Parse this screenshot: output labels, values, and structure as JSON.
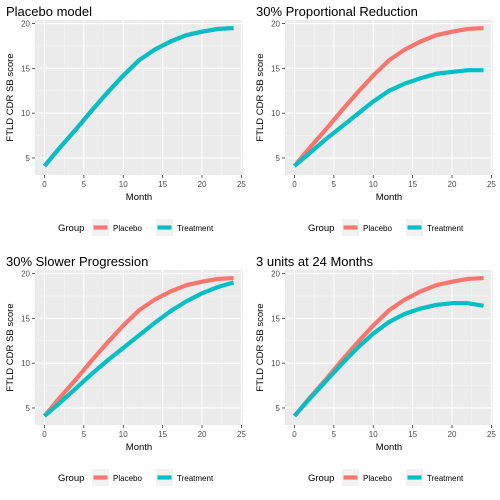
{
  "chart_data": [
    {
      "type": "line",
      "title": "Placebo model",
      "xlabel": "Month",
      "ylabel": "FTLD CDR SB score",
      "xlim": [
        0,
        24
      ],
      "ylim": [
        3,
        20
      ],
      "xticks": [
        0,
        5,
        10,
        15,
        20,
        25
      ],
      "yticks": [
        5,
        10,
        15,
        20
      ],
      "grid": true,
      "legend": {
        "title": "Group",
        "position": "bottom",
        "entries": [
          "Placebo",
          "Treatment"
        ]
      },
      "x": [
        0,
        2,
        4,
        6,
        8,
        10,
        12,
        14,
        16,
        18,
        20,
        22,
        24
      ],
      "series": [
        {
          "name": "Placebo",
          "color": "#f8766d",
          "values": [
            4.1,
            6.2,
            8.2,
            10.3,
            12.3,
            14.2,
            15.9,
            17.1,
            18.0,
            18.7,
            19.1,
            19.4,
            19.5
          ]
        },
        {
          "name": "Treatment",
          "color": "#00bfc4",
          "values": [
            4.1,
            6.2,
            8.2,
            10.3,
            12.3,
            14.2,
            15.9,
            17.1,
            18.0,
            18.7,
            19.1,
            19.4,
            19.5
          ]
        }
      ]
    },
    {
      "type": "line",
      "title": "30% Proportional Reduction",
      "xlabel": "Month",
      "ylabel": "FTLD CDR SB score",
      "xlim": [
        0,
        24
      ],
      "ylim": [
        3,
        20
      ],
      "xticks": [
        0,
        5,
        10,
        15,
        20,
        25
      ],
      "yticks": [
        5,
        10,
        15,
        20
      ],
      "grid": true,
      "legend": {
        "title": "Group",
        "position": "bottom",
        "entries": [
          "Placebo",
          "Treatment"
        ]
      },
      "x": [
        0,
        2,
        4,
        6,
        8,
        10,
        12,
        14,
        16,
        18,
        20,
        22,
        24
      ],
      "series": [
        {
          "name": "Placebo",
          "color": "#f8766d",
          "values": [
            4.1,
            6.2,
            8.2,
            10.3,
            12.3,
            14.2,
            15.9,
            17.1,
            18.0,
            18.7,
            19.1,
            19.4,
            19.5
          ]
        },
        {
          "name": "Treatment",
          "color": "#00bfc4",
          "values": [
            4.1,
            5.6,
            7.1,
            8.5,
            9.9,
            11.3,
            12.5,
            13.3,
            13.9,
            14.4,
            14.6,
            14.8,
            14.8
          ]
        }
      ]
    },
    {
      "type": "line",
      "title": "30% Slower Progression",
      "xlabel": "Month",
      "ylabel": "FTLD CDR SB score",
      "xlim": [
        0,
        24
      ],
      "ylim": [
        3,
        20
      ],
      "xticks": [
        0,
        5,
        10,
        15,
        20,
        25
      ],
      "yticks": [
        5,
        10,
        15,
        20
      ],
      "grid": true,
      "legend": {
        "title": "Group",
        "position": "bottom",
        "entries": [
          "Placebo",
          "Treatment"
        ]
      },
      "x": [
        0,
        2,
        4,
        6,
        8,
        10,
        12,
        14,
        16,
        18,
        20,
        22,
        24
      ],
      "series": [
        {
          "name": "Placebo",
          "color": "#f8766d",
          "values": [
            4.1,
            6.2,
            8.2,
            10.3,
            12.3,
            14.2,
            15.9,
            17.1,
            18.0,
            18.7,
            19.1,
            19.4,
            19.5
          ]
        },
        {
          "name": "Treatment",
          "color": "#00bfc4",
          "values": [
            4.1,
            5.6,
            7.2,
            8.8,
            10.3,
            11.7,
            13.1,
            14.5,
            15.8,
            16.9,
            17.8,
            18.5,
            19.0
          ]
        }
      ]
    },
    {
      "type": "line",
      "title": "3 units at 24 Months",
      "xlabel": "Month",
      "ylabel": "FTLD CDR SB score",
      "xlim": [
        0,
        24
      ],
      "ylim": [
        3,
        20
      ],
      "xticks": [
        0,
        5,
        10,
        15,
        20,
        25
      ],
      "yticks": [
        5,
        10,
        15,
        20
      ],
      "grid": true,
      "legend": {
        "title": "Group",
        "position": "bottom",
        "entries": [
          "Placebo",
          "Treatment"
        ]
      },
      "x": [
        0,
        2,
        4,
        6,
        8,
        10,
        12,
        14,
        16,
        18,
        20,
        22,
        24
      ],
      "series": [
        {
          "name": "Placebo",
          "color": "#f8766d",
          "values": [
            4.1,
            6.2,
            8.2,
            10.3,
            12.3,
            14.2,
            15.9,
            17.1,
            18.0,
            18.7,
            19.1,
            19.4,
            19.5
          ]
        },
        {
          "name": "Treatment",
          "color": "#00bfc4",
          "values": [
            4.1,
            6.1,
            8.0,
            9.9,
            11.7,
            13.3,
            14.6,
            15.5,
            16.1,
            16.5,
            16.7,
            16.7,
            16.4
          ]
        }
      ]
    }
  ]
}
